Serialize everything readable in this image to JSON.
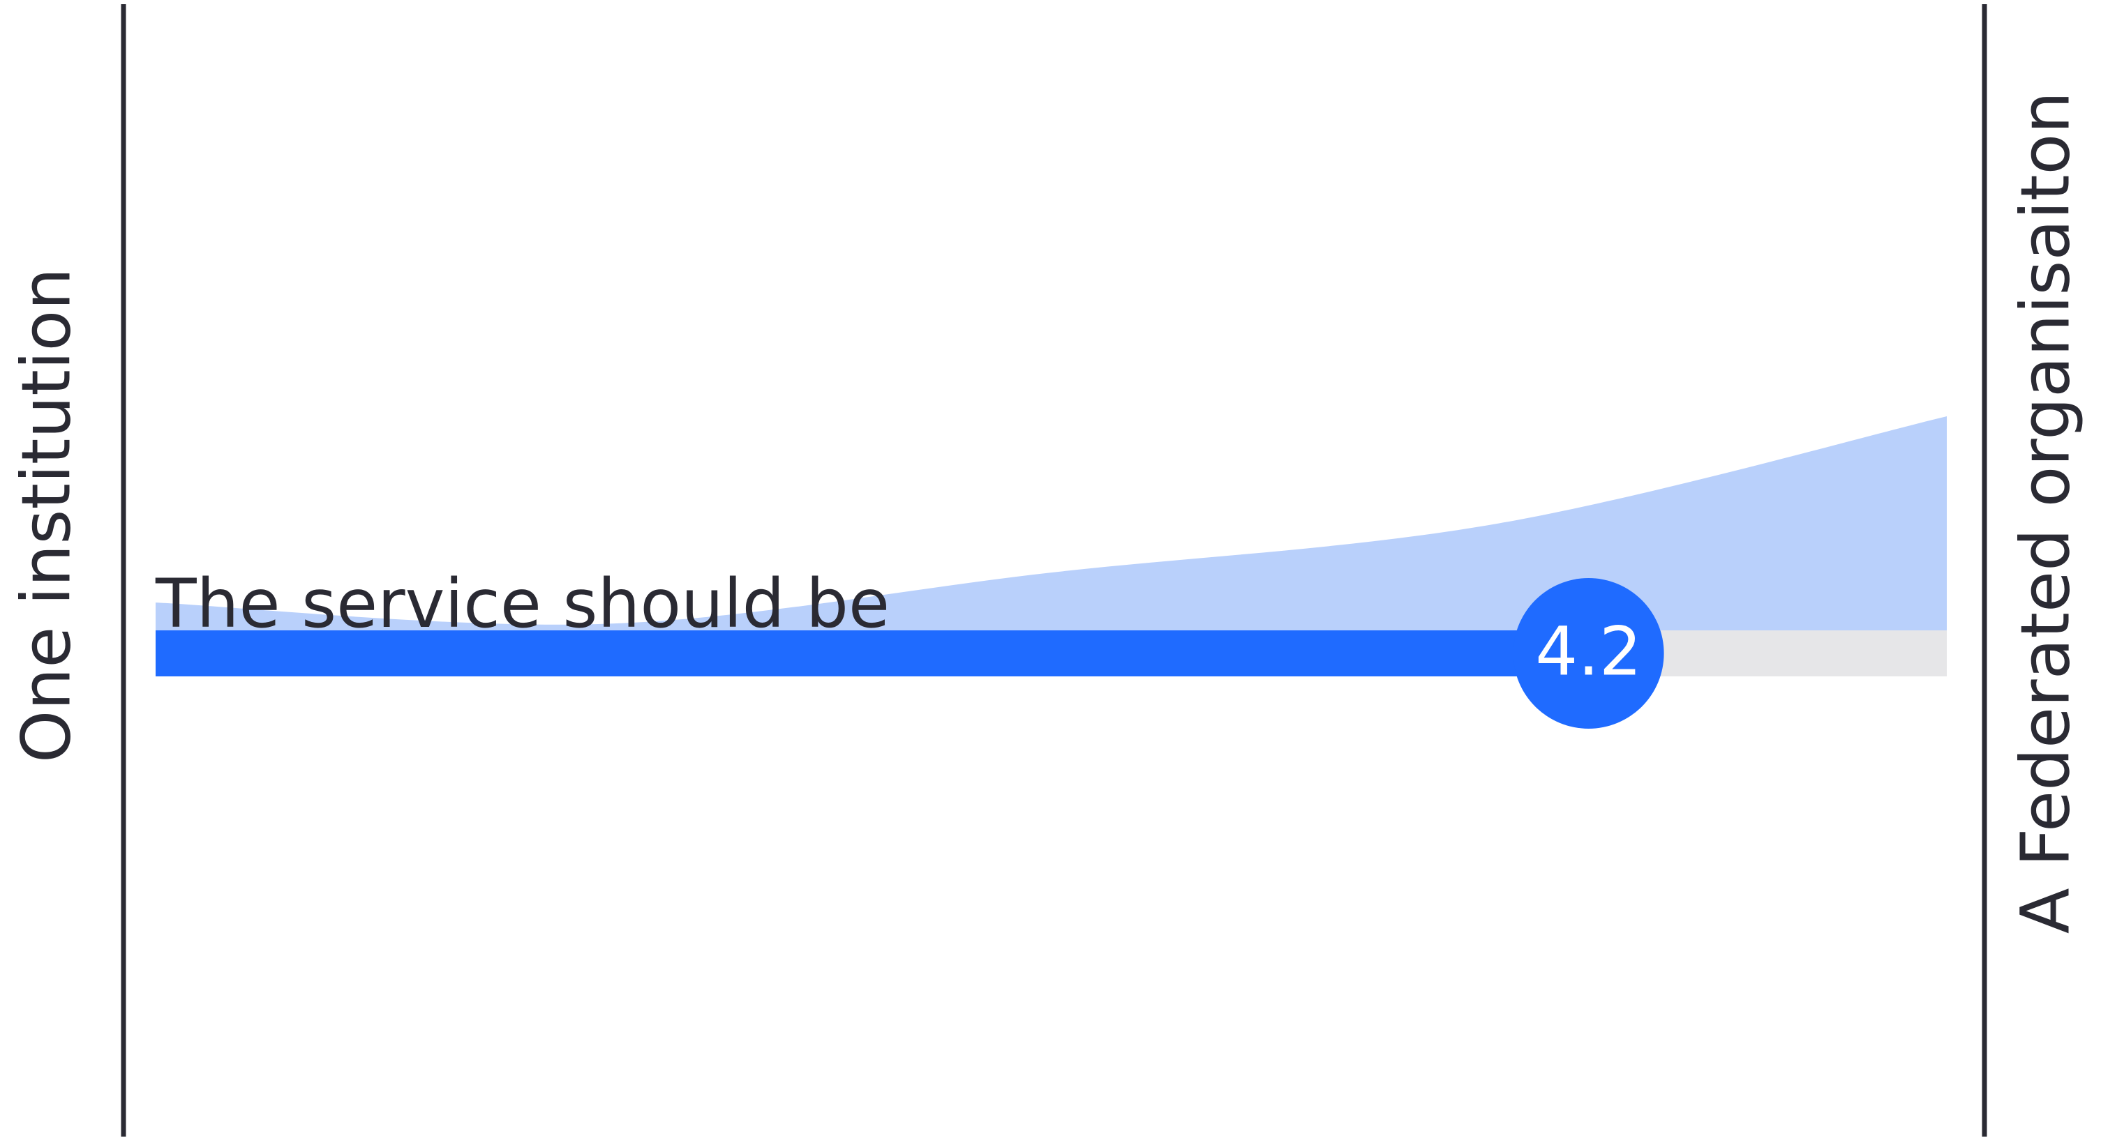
{
  "chart_data": {
    "type": "scale",
    "statement": "The service should be",
    "left_label": "One institution",
    "right_label": "A Federated organisaiton",
    "value": 4.2,
    "xlim": [
      1,
      5
    ],
    "color": "#1f6bff",
    "track_color": "#e6e6e8",
    "distribution": {
      "x": [
        1,
        2,
        3,
        4,
        5
      ],
      "values": [
        0.13,
        0.03,
        0.27,
        0.5,
        1
      ],
      "ylim": [
        0,
        1
      ],
      "color": "#b9d0fb"
    }
  }
}
